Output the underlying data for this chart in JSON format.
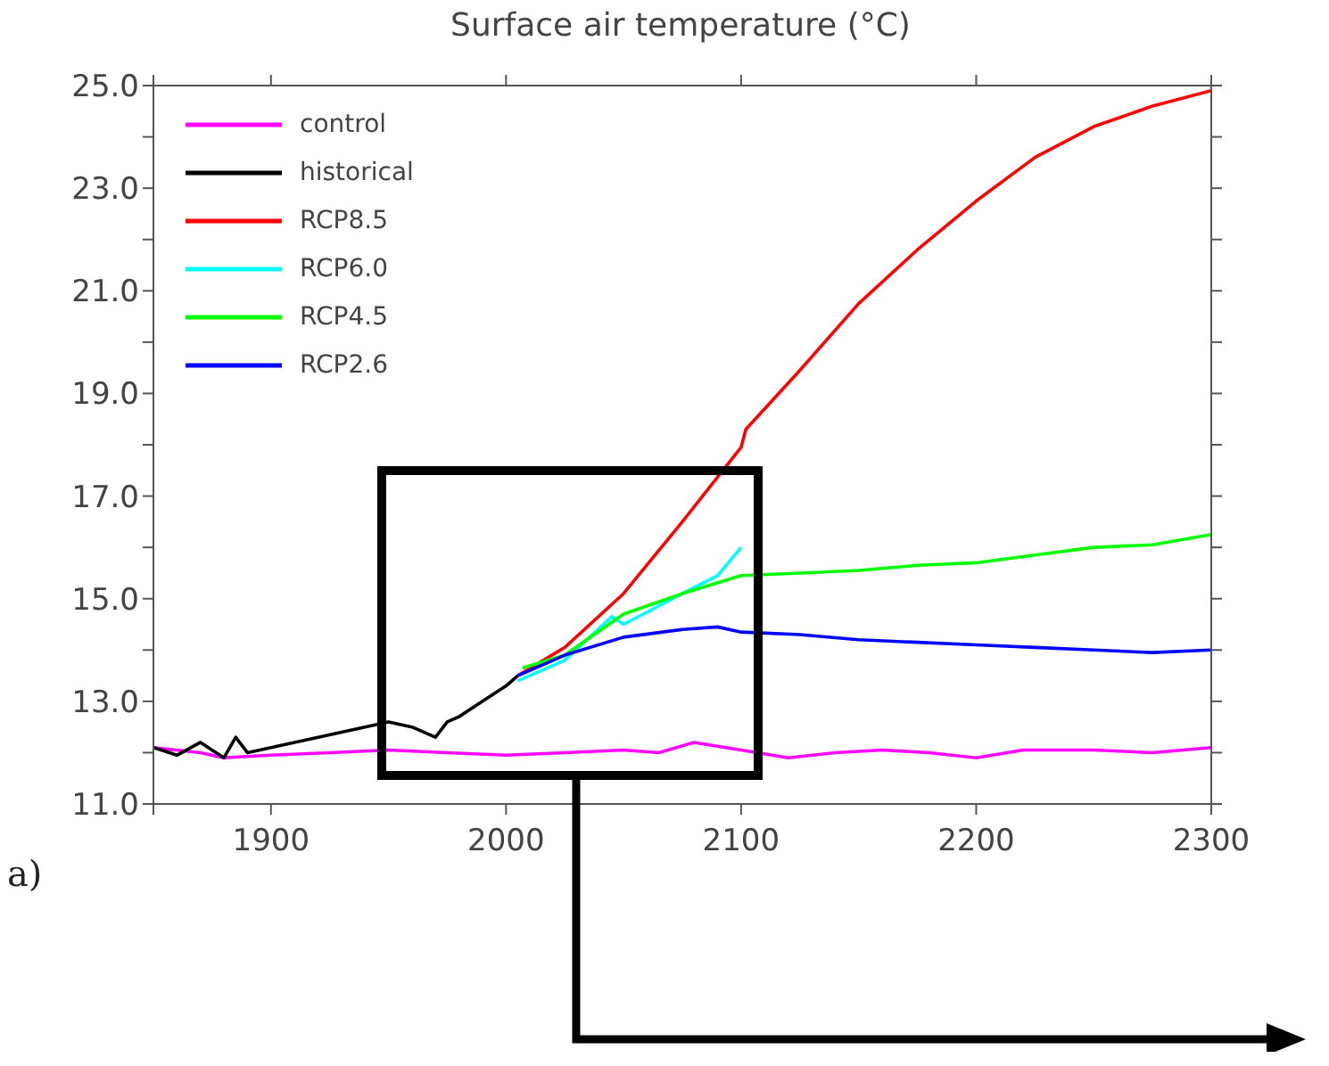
{
  "chart_data": {
    "type": "line",
    "title": "Surface air temperature (°C)",
    "xlim": [
      1850,
      2300
    ],
    "xticks": [
      {
        "value": 1850,
        "label": null
      },
      1900,
      2000,
      2100,
      2200,
      2300
    ],
    "ylim": [
      11,
      25
    ],
    "yticks": [
      {
        "value": 11,
        "label": "11.0"
      },
      {
        "value": 12,
        "label": null
      },
      {
        "value": 13,
        "label": "13.0"
      },
      {
        "value": 14,
        "label": null
      },
      {
        "value": 15,
        "label": "15.0"
      },
      {
        "value": 16,
        "label": null
      },
      {
        "value": 17,
        "label": "17.0"
      },
      {
        "value": 18,
        "label": null
      },
      {
        "value": 19,
        "label": "19.0"
      },
      {
        "value": 20,
        "label": null
      },
      {
        "value": 21,
        "label": "21.0"
      },
      {
        "value": 22,
        "label": null
      },
      {
        "value": 23,
        "label": "23.0"
      },
      {
        "value": 24,
        "label": null
      },
      {
        "value": 25,
        "label": "25.0"
      }
    ],
    "legend": "top left",
    "marker": "none",
    "line_style": "solid",
    "annotations": [
      "a)"
    ],
    "series": [
      {
        "name": "control",
        "color": "#ff00ff",
        "x": [
          1850,
          1870,
          1880,
          1900,
          1925,
          1950,
          1975,
          2000,
          2025,
          2050,
          2065,
          2080,
          2100,
          2120,
          2140,
          2160,
          2180,
          2200,
          2220,
          2250,
          2275,
          2300
        ],
        "values": [
          12.1,
          12.0,
          11.9,
          11.95,
          12.0,
          12.05,
          12.0,
          11.95,
          12.0,
          12.05,
          12.0,
          12.2,
          12.05,
          11.9,
          12.0,
          12.05,
          12.0,
          11.9,
          12.05,
          12.05,
          12.0,
          12.1
        ]
      },
      {
        "name": "historical",
        "color": "#000000",
        "x": [
          1850,
          1860,
          1870,
          1880,
          1885,
          1890,
          1900,
          1910,
          1920,
          1930,
          1940,
          1950,
          1960,
          1970,
          1975,
          1980,
          1990,
          2000,
          2005
        ],
        "values": [
          12.1,
          11.95,
          12.2,
          11.9,
          12.3,
          12.0,
          12.1,
          12.2,
          12.3,
          12.4,
          12.5,
          12.6,
          12.5,
          12.3,
          12.6,
          12.7,
          13.0,
          13.3,
          13.5
        ]
      },
      {
        "name": "RCP8.5",
        "color": "#ff0000",
        "x": [
          2005,
          2025,
          2050,
          2075,
          2100,
          2102,
          2125,
          2150,
          2175,
          2200,
          2225,
          2250,
          2275,
          2300
        ],
        "values": [
          13.5,
          14.05,
          15.1,
          16.5,
          17.95,
          18.3,
          19.45,
          20.75,
          21.8,
          22.75,
          23.6,
          24.2,
          24.6,
          24.9
        ]
      },
      {
        "name": "RCP6.0",
        "color": "#00ffff",
        "x": [
          2005,
          2025,
          2045,
          2050,
          2075,
          2090,
          2100
        ],
        "values": [
          13.4,
          13.8,
          14.65,
          14.5,
          15.1,
          15.45,
          16.0
        ]
      },
      {
        "name": "RCP4.5",
        "color": "#00ff00",
        "x": [
          2007,
          2025,
          2050,
          2075,
          2100,
          2125,
          2150,
          2175,
          2200,
          2225,
          2250,
          2275,
          2300
        ],
        "values": [
          13.65,
          13.9,
          14.7,
          15.1,
          15.45,
          15.5,
          15.55,
          15.65,
          15.7,
          15.85,
          16.0,
          16.05,
          16.25
        ]
      },
      {
        "name": "RCP2.6",
        "color": "#0000ff",
        "x": [
          2005,
          2025,
          2050,
          2075,
          2090,
          2100,
          2125,
          2150,
          2175,
          2200,
          2225,
          2250,
          2275,
          2300
        ],
        "values": [
          13.5,
          13.9,
          14.25,
          14.4,
          14.45,
          14.35,
          14.3,
          14.2,
          14.15,
          14.1,
          14.05,
          14.0,
          13.95,
          14.0
        ]
      }
    ]
  }
}
